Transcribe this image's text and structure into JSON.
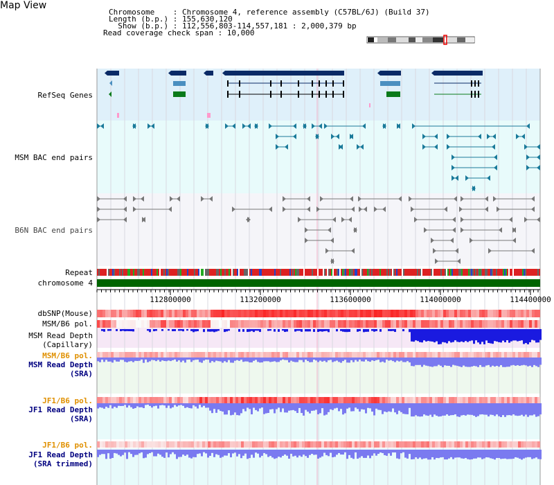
{
  "header": {
    "title": "Map View",
    "info_lines": [
      "Chromosome    : Chromosome 4, reference assembly (C57BL/6J) (Build 37)",
      "Length (b.p.) : 155,630,120",
      "  Show (b.p.) : 112,556,803-114,557,181 : 2,000,379 bp"
    ],
    "coverage_line": "Read coverage check span : 10,000"
  },
  "colors": {
    "refseq_bg": "#dff0fa",
    "msm_bac_bg": "#e8fbfb",
    "b6n_bac_bg": "#f5f5f9",
    "gene_dark": "#0a2a66",
    "gene_mid": "#4a8fc0",
    "gene_green": "#0a7a1a",
    "bac_teal": "#1a7a9a",
    "bac_gray": "#777777",
    "chromosome": "#006400",
    "snp_red": "#ee2222",
    "depth_blue": "#7a7af0",
    "depth_dark_blue": "#1a1ae0",
    "label_navy": "#000080",
    "label_teal": "#1a6a8a",
    "label_orange": "#e09000"
  },
  "tracks": [
    {
      "id": "refseq",
      "label": "RefSeq Genes",
      "color": "label_navy"
    },
    {
      "id": "msm_bac",
      "label": "MSM BAC end pairs",
      "color": "label_teal"
    },
    {
      "id": "b6n_bac",
      "label": "B6N BAC end pairs",
      "color": "label_gray"
    },
    {
      "id": "repeat",
      "label": "Repeat"
    },
    {
      "id": "chromosome",
      "label": "chromosome 4"
    },
    {
      "id": "dbsnp",
      "label": "dbSNP(Mouse)"
    },
    {
      "id": "msm_b6_pol_1",
      "label": "MSM/B6 pol."
    },
    {
      "id": "msm_depth_cap",
      "label": "MSM Read Depth\n(Capillary)"
    },
    {
      "id": "msm_b6_pol_2",
      "label": "MSM/B6 pol.",
      "color": "label_orange"
    },
    {
      "id": "msm_depth_sra",
      "label": "MSM Read Depth\n(SRA)",
      "color": "label_navy"
    },
    {
      "id": "jf1_b6_pol_1",
      "label": "JF1/B6 pol.",
      "color": "label_orange"
    },
    {
      "id": "jf1_depth_sra",
      "label": "JF1 Read Depth\n(SRA)",
      "color": "label_navy"
    },
    {
      "id": "jf1_b6_pol_2",
      "label": "JF1/B6 pol.",
      "color": "label_orange"
    },
    {
      "id": "jf1_depth_trim",
      "label": "JF1 Read Depth\n(SRA trimmed)",
      "color": "label_navy"
    }
  ],
  "axis": {
    "ticks": [
      "112800000",
      "113200000",
      "113600000",
      "114000000",
      "114400000"
    ]
  }
}
